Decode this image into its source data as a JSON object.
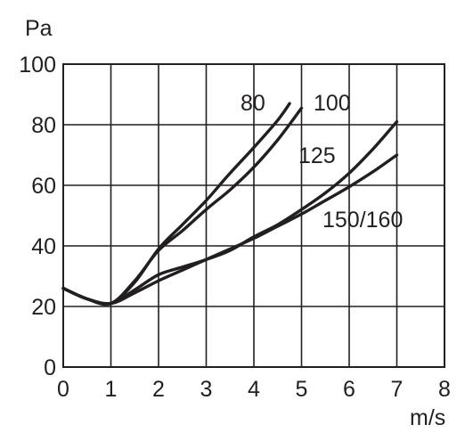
{
  "chart_data": {
    "type": "line",
    "title": "",
    "xlabel": "m/s",
    "ylabel": "Pa",
    "xlim": [
      0,
      8
    ],
    "ylim": [
      0,
      100
    ],
    "x_ticks": [
      "0",
      "1",
      "2",
      "3",
      "4",
      "5",
      "6",
      "7",
      "8"
    ],
    "y_ticks": [
      "0",
      "20",
      "40",
      "60",
      "80",
      "100"
    ],
    "grid": true,
    "legend": "none",
    "line_color": "#231f20",
    "series": [
      {
        "name": "80",
        "x": [
          0,
          0.5,
          1,
          1.5,
          2,
          2.5,
          3,
          3.5,
          4,
          4.5,
          4.75
        ],
        "y": [
          26,
          22.5,
          21,
          28,
          39,
          47,
          55,
          64,
          72.5,
          81.5,
          87
        ]
      },
      {
        "name": "100",
        "x": [
          0,
          0.5,
          1,
          1.5,
          2,
          2.5,
          3,
          3.5,
          4,
          4.5,
          5
        ],
        "y": [
          26,
          22.5,
          21,
          28.5,
          38.5,
          45,
          52,
          58.5,
          66,
          75,
          85.5
        ]
      },
      {
        "name": "125",
        "x": [
          0,
          0.5,
          1,
          1.5,
          2,
          2.5,
          3,
          3.5,
          4,
          4.5,
          5,
          5.5,
          6,
          6.5,
          7
        ],
        "y": [
          26,
          22.5,
          21,
          25.5,
          30.5,
          33,
          35.5,
          38.5,
          43,
          47,
          52,
          57.5,
          64,
          72,
          81
        ]
      },
      {
        "name": "150/160",
        "x": [
          0,
          0.5,
          1,
          1.5,
          2,
          2.5,
          3,
          3.5,
          4,
          4.5,
          5,
          5.5,
          6,
          6.5,
          7
        ],
        "y": [
          26,
          22.5,
          21,
          24.5,
          28.5,
          32,
          35.5,
          39,
          42.5,
          46.5,
          50.5,
          55,
          59.5,
          64.5,
          70
        ]
      }
    ]
  }
}
